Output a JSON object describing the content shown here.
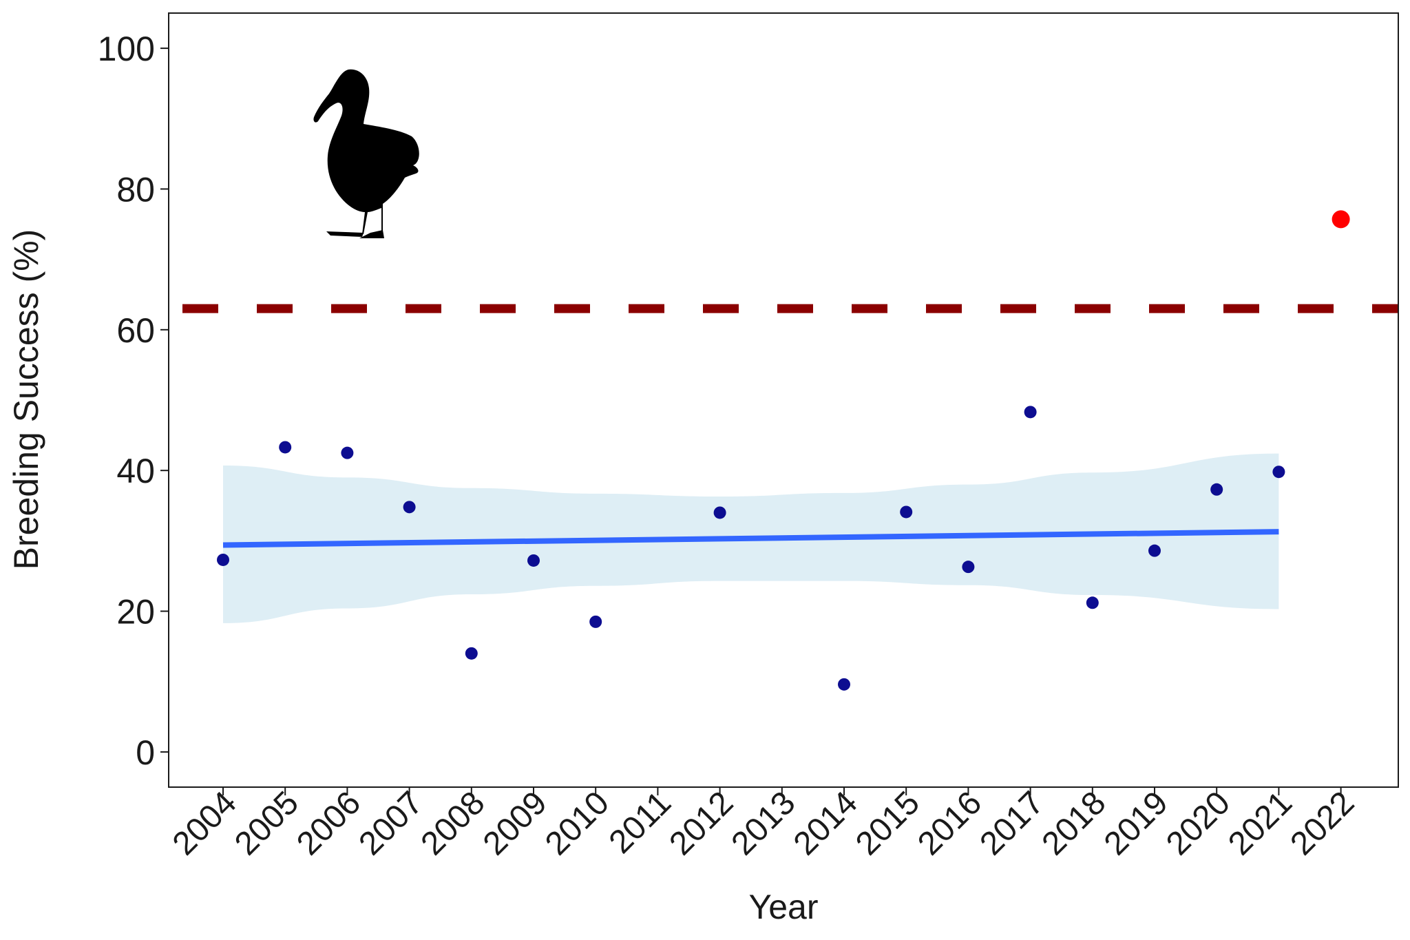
{
  "chart_data": {
    "type": "scatter",
    "xlabel": "Year",
    "ylabel": "Breeding Success (%)",
    "categories": [
      "2004",
      "2005",
      "2006",
      "2007",
      "2008",
      "2009",
      "2010",
      "2011",
      "2012",
      "2013",
      "2014",
      "2015",
      "2016",
      "2017",
      "2018",
      "2019",
      "2020",
      "2021",
      "2022"
    ],
    "ylim": [
      -5,
      105
    ],
    "yticks": [
      0,
      20,
      40,
      60,
      80,
      100
    ],
    "grid": false,
    "legend": "none",
    "series": [
      {
        "color": "#00008b",
        "points": [
          {
            "x": "2004",
            "y": 27.3
          },
          {
            "x": "2005",
            "y": 43.3
          },
          {
            "x": "2006",
            "y": 42.5
          },
          {
            "x": "2007",
            "y": 34.8
          },
          {
            "x": "2008",
            "y": 14.0
          },
          {
            "x": "2009",
            "y": 27.2
          },
          {
            "x": "2010",
            "y": 18.5
          },
          {
            "x": "2012",
            "y": 34.0
          },
          {
            "x": "2014",
            "y": 9.6
          },
          {
            "x": "2015",
            "y": 34.1
          },
          {
            "x": "2016",
            "y": 26.3
          },
          {
            "x": "2017",
            "y": 48.3
          },
          {
            "x": "2018",
            "y": 21.2
          },
          {
            "x": "2019",
            "y": 28.6
          },
          {
            "x": "2020",
            "y": 37.3
          },
          {
            "x": "2021",
            "y": 39.8
          }
        ]
      },
      {
        "color": "#ff0000",
        "points": [
          {
            "x": "2022",
            "y": 75.7
          }
        ]
      }
    ],
    "trend": {
      "color": "#3366ff",
      "band_color": "#deeef5",
      "points": [
        {
          "x": "2004",
          "y": 29.4,
          "lower": 18.3,
          "upper": 40.7
        },
        {
          "x": "2006",
          "y": 29.7,
          "lower": 20.4,
          "upper": 39.0
        },
        {
          "x": "2008",
          "y": 29.9,
          "lower": 22.4,
          "upper": 37.5
        },
        {
          "x": "2010",
          "y": 30.1,
          "lower": 23.6,
          "upper": 36.7
        },
        {
          "x": "2012",
          "y": 30.4,
          "lower": 24.3,
          "upper": 36.3
        },
        {
          "x": "2014",
          "y": 30.6,
          "lower": 24.3,
          "upper": 36.8
        },
        {
          "x": "2016",
          "y": 30.8,
          "lower": 23.7,
          "upper": 38.0
        },
        {
          "x": "2018",
          "y": 31.0,
          "lower": 22.3,
          "upper": 39.7
        },
        {
          "x": "2021",
          "y": 31.3,
          "lower": 20.3,
          "upper": 42.4
        }
      ]
    },
    "reference_line": {
      "y": 63,
      "color": "#8b0000",
      "style": "dashed"
    },
    "icon": "albatross-silhouette-icon"
  }
}
